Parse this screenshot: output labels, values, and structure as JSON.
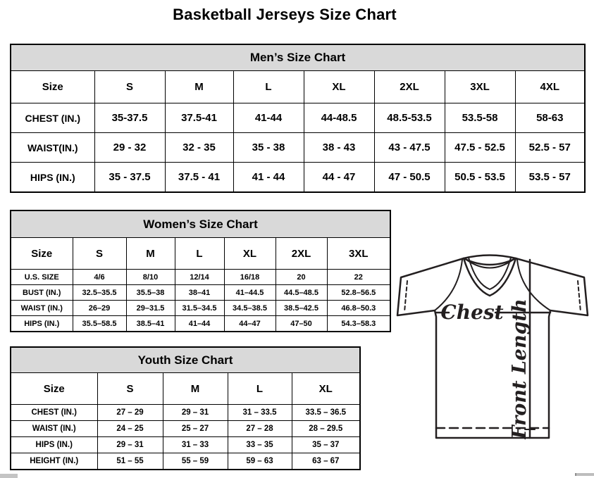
{
  "page_title": "Basketball Jerseys Size Chart",
  "colors": {
    "table_header_bg": "#d9d9d9",
    "table_border": "#000000",
    "diagram_line": "#231f20",
    "background": "#ffffff"
  },
  "tables": {
    "mens": {
      "title": "Men’s Size Chart",
      "columns": [
        "Size",
        "S",
        "M",
        "L",
        "XL",
        "2XL",
        "3XL",
        "4XL"
      ],
      "rows": [
        [
          "CHEST (IN.)",
          "35-37.5",
          "37.5-41",
          "41-44",
          "44-48.5",
          "48.5-53.5",
          "53.5-58",
          "58-63"
        ],
        [
          "WAIST(IN.)",
          "29 - 32",
          "32 - 35",
          "35 - 38",
          "38 - 43",
          "43 - 47.5",
          "47.5 - 52.5",
          "52.5 - 57"
        ],
        [
          "HIPS (IN.)",
          "35 - 37.5",
          "37.5 - 41",
          "41 - 44",
          "44 - 47",
          "47 - 50.5",
          "50.5 - 53.5",
          "53.5 - 57"
        ]
      ]
    },
    "womens": {
      "title": "Women’s Size Chart",
      "columns": [
        "Size",
        "S",
        "M",
        "L",
        "XL",
        "2XL",
        "3XL"
      ],
      "rows": [
        [
          "U.S. SIZE",
          "4/6",
          "8/10",
          "12/14",
          "16/18",
          "20",
          "22"
        ],
        [
          "BUST (IN.)",
          "32.5–35.5",
          "35.5–38",
          "38–41",
          "41–44.5",
          "44.5–48.5",
          "52.8–56.5"
        ],
        [
          "WAIST (IN.)",
          "26–29",
          "29–31.5",
          "31.5–34.5",
          "34.5–38.5",
          "38.5–42.5",
          "46.8–50.3"
        ],
        [
          "HIPS (IN.)",
          "35.5–58.5",
          "38.5–41",
          "41–44",
          "44–47",
          "47–50",
          "54.3–58.3"
        ]
      ]
    },
    "youth": {
      "title": "Youth Size Chart",
      "columns": [
        "Size",
        "S",
        "M",
        "L",
        "XL"
      ],
      "rows": [
        [
          "CHEST (IN.)",
          "27 – 29",
          "29 – 31",
          "31 – 33.5",
          "33.5 – 36.5"
        ],
        [
          "WAIST (IN.)",
          "24 – 25",
          "25 – 27",
          "27 – 28",
          "28 – 29.5"
        ],
        [
          "HIPS (IN.)",
          "29 – 31",
          "31 – 33",
          "33 – 35",
          "35 – 37"
        ],
        [
          "HEIGHT (IN.)",
          "51 – 55",
          "55 – 59",
          "59 – 63",
          "63 – 67"
        ]
      ]
    }
  },
  "diagram": {
    "chest_label": "Chest",
    "front_length_label": "Front Length"
  }
}
